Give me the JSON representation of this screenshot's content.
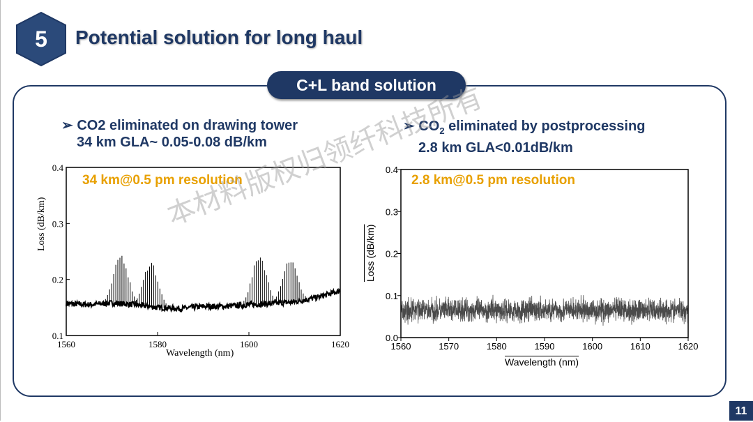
{
  "section_number": "5",
  "title": "Potential solution for long haul",
  "band_label": "C+L band solution",
  "left": {
    "bullet_line1": "CO2 eliminated on drawing tower",
    "bullet_line2": "34 km GLA~ 0.05-0.08 dB/km"
  },
  "right": {
    "bullet_line1_pre": "CO",
    "bullet_line1_sub": "2",
    "bullet_line1_post": " eliminated by postprocessing",
    "bullet_line2": "2.8 km GLA<0.01dB/km"
  },
  "watermark": "本材料版权归领纤科技所有",
  "page_number": "11",
  "colors": {
    "brand": "#1f3864",
    "annotation": "#e8a000",
    "trace_left": "#000000",
    "trace_right": "#4a4a4a"
  },
  "chart_data": [
    {
      "type": "line",
      "annotation": "34 km@0.5 pm resolution",
      "xlabel": "Wavelength (nm)",
      "ylabel": "Loss (dB/km)",
      "xlim": [
        1560,
        1620
      ],
      "ylim": [
        0.1,
        0.4
      ],
      "xticks": [
        "1560",
        "1580",
        "1600",
        "1620"
      ],
      "yticks": [
        "0.1",
        "0.2",
        "0.3",
        "0.4"
      ],
      "grid": false,
      "baseline": {
        "x": [
          1560,
          1565,
          1570,
          1575,
          1580,
          1585,
          1590,
          1595,
          1600,
          1605,
          1610,
          1615,
          1620
        ],
        "y": [
          0.157,
          0.155,
          0.158,
          0.155,
          0.15,
          0.148,
          0.152,
          0.152,
          0.155,
          0.157,
          0.16,
          0.168,
          0.18
        ]
      },
      "absorption_peaks": [
        {
          "center": 1572,
          "peak": 0.248
        },
        {
          "center": 1578.5,
          "peak": 0.235
        },
        {
          "center": 1602.3,
          "peak": 0.247
        },
        {
          "center": 1609,
          "peak": 0.24
        }
      ]
    },
    {
      "type": "line",
      "annotation": "2.8 km@0.5 pm resolution",
      "xlabel": "Wavelength (nm)",
      "ylabel": "Loss (dB/km)",
      "xlim": [
        1560,
        1620
      ],
      "ylim": [
        0.0,
        0.4
      ],
      "xticks": [
        "1560",
        "1570",
        "1580",
        "1590",
        "1600",
        "1610",
        "1620"
      ],
      "yticks": [
        "0.0",
        "0.1",
        "0.2",
        "0.3",
        "0.4"
      ],
      "grid": false,
      "mean": 0.065,
      "range": [
        0.02,
        0.115
      ]
    }
  ]
}
